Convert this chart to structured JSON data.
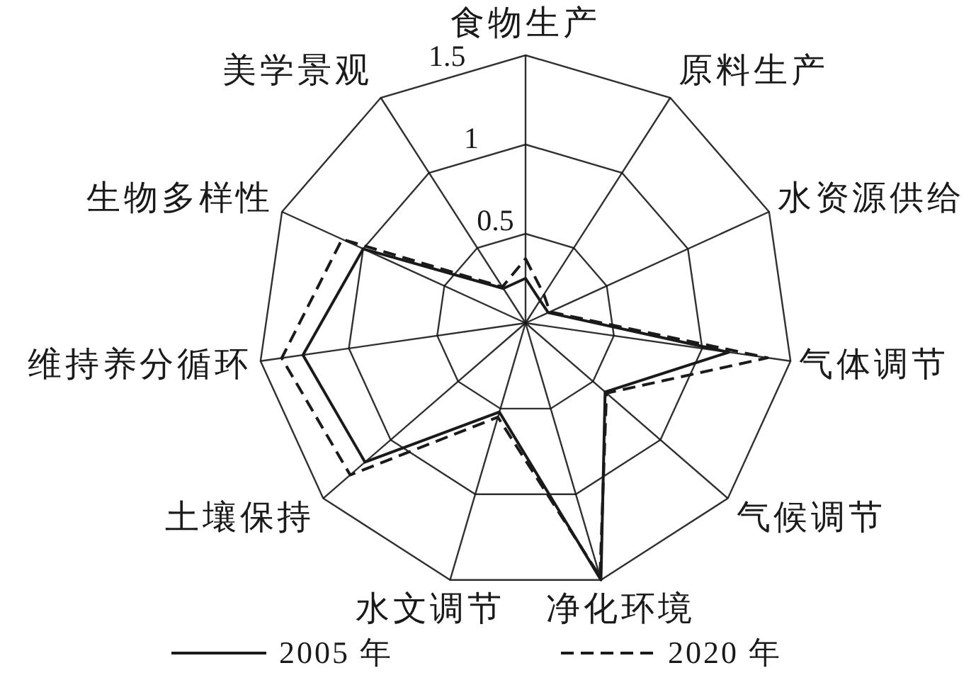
{
  "chart_data": {
    "type": "radar",
    "categories": [
      "食物生产",
      "原料生产",
      "水资源供给",
      "气体调节",
      "气候调节",
      "净化环境",
      "水文调节",
      "土壤保持",
      "维持养分循环",
      "生物多样性",
      "美学景观"
    ],
    "series": [
      {
        "name": "2005 年",
        "color": "#1a1a1a",
        "line_style": "solid",
        "values": [
          0.25,
          0.15,
          0.14,
          1.15,
          0.59,
          1.5,
          0.52,
          1.19,
          1.26,
          1.0,
          0.23
        ]
      },
      {
        "name": "2020 年",
        "color": "#1a1a1a",
        "line_style": "dashed",
        "values": [
          0.36,
          0.19,
          0.15,
          1.37,
          0.6,
          1.48,
          0.55,
          1.3,
          1.38,
          1.13,
          0.24
        ]
      }
    ],
    "ylim": [
      0,
      1.5
    ],
    "yticks": [
      0.5,
      1,
      1.5
    ],
    "grid": true,
    "legend": "bottom",
    "marker": "none"
  }
}
